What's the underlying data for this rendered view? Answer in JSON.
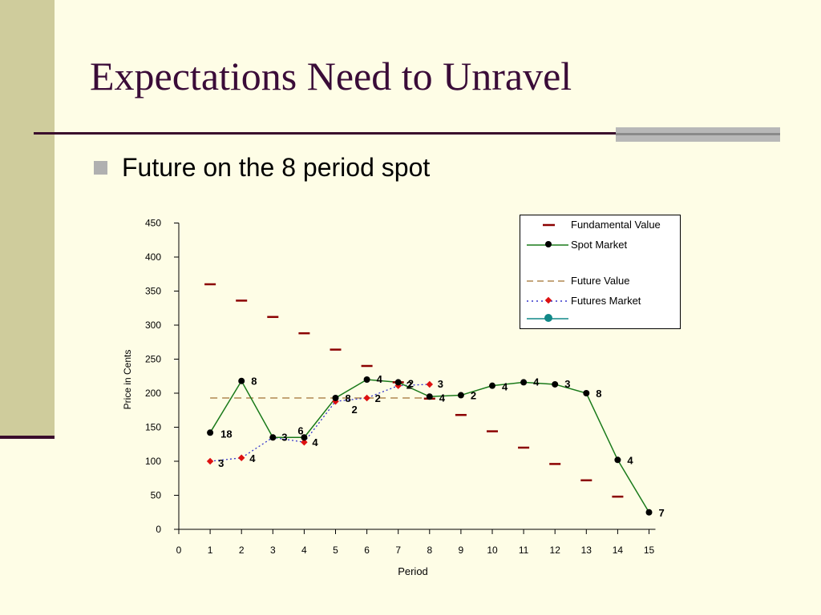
{
  "slide": {
    "title": "Expectations Need to Unravel",
    "bullet": "Future on the 8 period spot"
  },
  "colors": {
    "background": "#fefde6",
    "title": "#3a0c38",
    "sidebar": "#cfcc9c",
    "fundamental": "#8b0000",
    "spot": "#1a7a1a",
    "future_value": "#b08850",
    "futures_market_line": "#3333cc",
    "futures_market_marker": "#dd1111",
    "teal": "#118888"
  },
  "chart_data": {
    "type": "line",
    "xlabel": "Period",
    "ylabel": "Price in Cents",
    "xlim": [
      0,
      15
    ],
    "ylim": [
      0,
      450
    ],
    "xticks": [
      "0",
      "1",
      "2",
      "3",
      "4",
      "5",
      "6",
      "7",
      "8",
      "9",
      "10",
      "11",
      "12",
      "13",
      "14",
      "15"
    ],
    "yticks": [
      "0",
      "50",
      "100",
      "150",
      "200",
      "250",
      "300",
      "350",
      "400",
      "450"
    ],
    "legend_position": "top-right",
    "series": [
      {
        "name": "Fundamental Value",
        "style": "marker-dash",
        "x": [
          1,
          2,
          3,
          4,
          5,
          6,
          7,
          8,
          9,
          10,
          11,
          12,
          13,
          14
        ],
        "y": [
          360,
          336,
          312,
          288,
          264,
          240,
          216,
          192,
          168,
          144,
          120,
          96,
          72,
          48
        ]
      },
      {
        "name": "Spot Market",
        "style": "line-circle",
        "x": [
          1,
          2,
          3,
          4,
          5,
          6,
          7,
          8,
          9,
          10,
          11,
          12,
          13,
          14,
          15
        ],
        "y": [
          142,
          218,
          135,
          135,
          193,
          220,
          216,
          195,
          197,
          211,
          216,
          213,
          200,
          102,
          25
        ],
        "labels": [
          "18",
          "8",
          "3",
          "6",
          "8",
          "4",
          "2",
          "4",
          "2",
          "4",
          "4",
          "3",
          "8",
          "4",
          "7"
        ]
      },
      {
        "name": "Future Value",
        "style": "dashed",
        "x": [
          1,
          8
        ],
        "y": [
          193,
          193
        ]
      },
      {
        "name": "Futures Market",
        "style": "dotted-diamond",
        "x": [
          1,
          2,
          3,
          4,
          5,
          6,
          7,
          8
        ],
        "y": [
          100,
          105,
          135,
          128,
          188,
          193,
          211,
          213
        ],
        "labels": [
          "3",
          "4",
          "",
          "4",
          "2",
          "2",
          "2",
          "3"
        ]
      },
      {
        "name": "",
        "style": "teal-line-circle",
        "x": [],
        "y": []
      }
    ]
  }
}
